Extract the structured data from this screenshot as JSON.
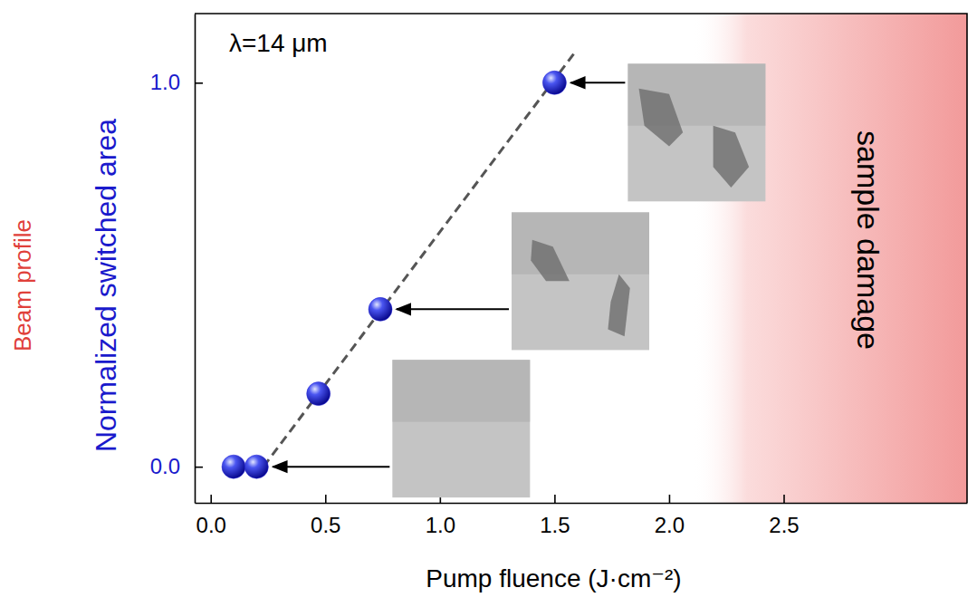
{
  "chart_data": {
    "type": "scatter",
    "x_label": "Pump fluence (J·cm⁻²)",
    "y_label": "Normalized switched area",
    "y2_label": "Beam profile",
    "annotations": [
      {
        "text": "λ=14 μm",
        "x": 0.08,
        "y": 1.08
      }
    ],
    "regions": [
      {
        "label": "sample damage",
        "x": [
          2.1,
          3.3
        ]
      }
    ],
    "series": [
      {
        "type": "scatter",
        "marker": "circle",
        "color": "#1f1fd6",
        "x": [
          0.1,
          0.2,
          0.47,
          0.74,
          1.5
        ],
        "values": [
          0,
          0,
          0.19,
          0.41,
          1.0
        ]
      },
      {
        "type": "line",
        "line_style": "dashed",
        "color": "#555555",
        "x": [
          0.23,
          1.59
        ],
        "values": [
          0,
          1.08
        ]
      }
    ],
    "xlim": [
      -0.07,
      3.3
    ],
    "ylim": [
      -0.094,
      1.18
    ],
    "xticks": [
      {
        "value": 0,
        "label": "0.0"
      },
      {
        "value": 0.5,
        "label": "0.5"
      },
      {
        "value": 1,
        "label": "1.0"
      },
      {
        "value": 1.5,
        "label": "1.5"
      },
      {
        "value": 2,
        "label": "2.0"
      },
      {
        "value": 2.5,
        "label": "2.5"
      }
    ],
    "yticks": [
      {
        "value": 0,
        "label": "0.0"
      },
      {
        "value": 1,
        "label": "1.0"
      }
    ]
  }
}
